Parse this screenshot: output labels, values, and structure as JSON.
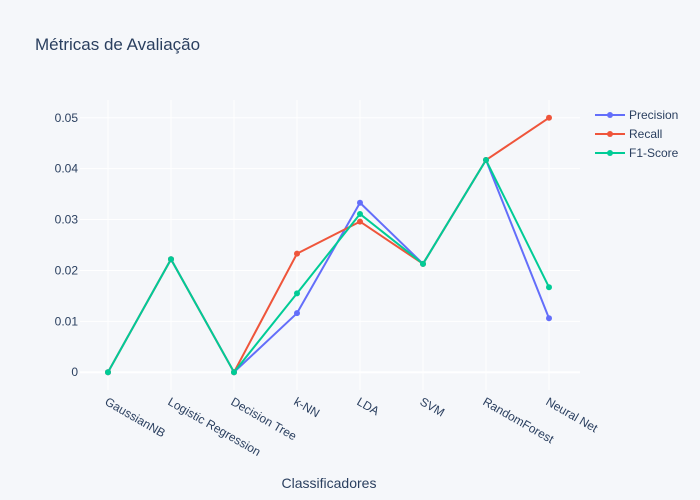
{
  "chart_data": {
    "type": "line",
    "title": "Métricas de Avaliação",
    "xlabel": "Classificadores",
    "ylabel": "",
    "categories": [
      "GaussianNB",
      "Logistic Regression",
      "Decision Tree",
      "k-NN",
      "LDA",
      "SVM",
      "RandomForest",
      "Neural Net"
    ],
    "ylim": [
      -0.0035,
      0.0535
    ],
    "yticks": [
      0,
      0.01,
      0.02,
      0.03,
      0.04,
      0.05
    ],
    "ytick_labels": [
      "0",
      "0.01",
      "0.02",
      "0.03",
      "0.04",
      "0.05"
    ],
    "grid": true,
    "legend_position": "top-right",
    "series": [
      {
        "name": "Precision",
        "color": "#636efa",
        "values": [
          0,
          0.0222,
          0,
          0.0116,
          0.0333,
          0.0213,
          0.0417,
          0.0106
        ]
      },
      {
        "name": "Recall",
        "color": "#ef553b",
        "values": [
          0,
          0.0222,
          0,
          0.0233,
          0.0296,
          0.0213,
          0.0417,
          0.05
        ]
      },
      {
        "name": "F1-Score",
        "color": "#00cc96",
        "values": [
          0,
          0.0222,
          0,
          0.0155,
          0.0311,
          0.0213,
          0.0417,
          0.0167
        ]
      }
    ]
  }
}
